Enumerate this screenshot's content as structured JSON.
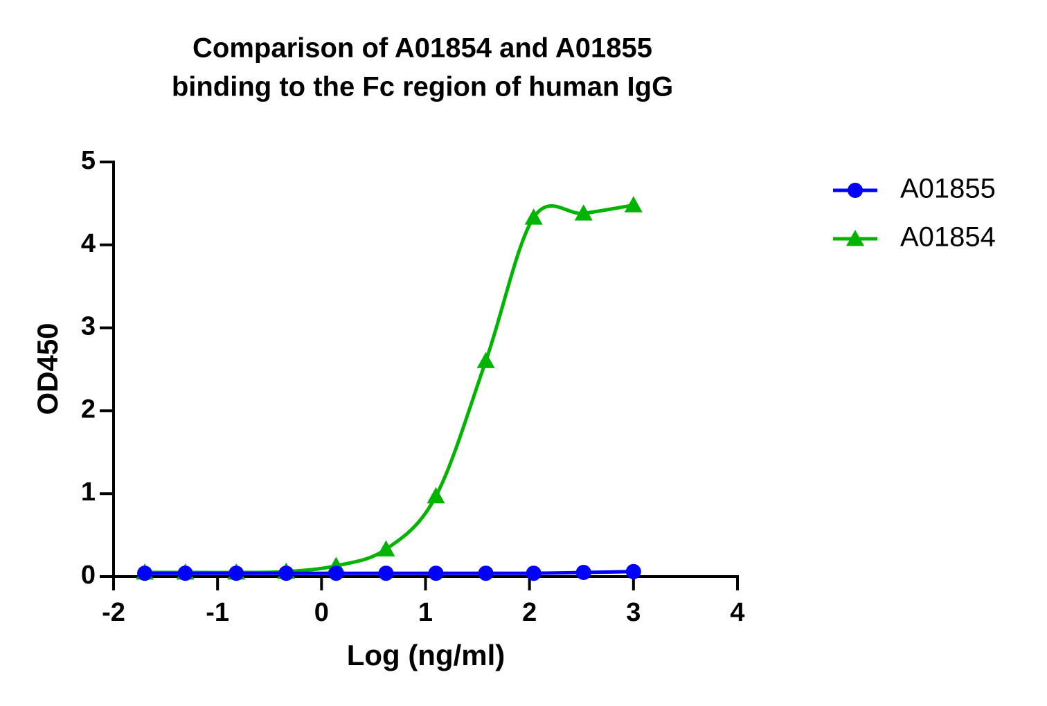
{
  "chart_data": {
    "type": "line",
    "title": [
      "Comparison of A01854 and A01855",
      "binding to the Fc region of human IgG"
    ],
    "x_label": "Log (ng/ml)",
    "y_label": "OD450",
    "x": [
      -1.7,
      -1.31,
      -0.82,
      -0.34,
      0.14,
      0.62,
      1.1,
      1.58,
      2.04,
      2.52,
      3.0
    ],
    "series": [
      {
        "name": "A01855",
        "color": "#0000ff",
        "marker": "circle",
        "values": [
          0.04,
          0.04,
          0.04,
          0.04,
          0.04,
          0.04,
          0.04,
          0.04,
          0.04,
          0.05,
          0.06
        ]
      },
      {
        "name": "A01854",
        "color": "#00b400",
        "marker": "triangle",
        "values": [
          0.05,
          0.05,
          0.05,
          0.06,
          0.13,
          0.33,
          0.97,
          2.6,
          4.33,
          4.38,
          4.48
        ]
      }
    ],
    "xlim": [
      -2,
      4
    ],
    "xticks": [
      -2,
      -1,
      0,
      1,
      2,
      3,
      4
    ],
    "ylim": [
      0,
      5
    ],
    "yticks": [
      0,
      1,
      2,
      3,
      4,
      5
    ],
    "legend": "right"
  }
}
